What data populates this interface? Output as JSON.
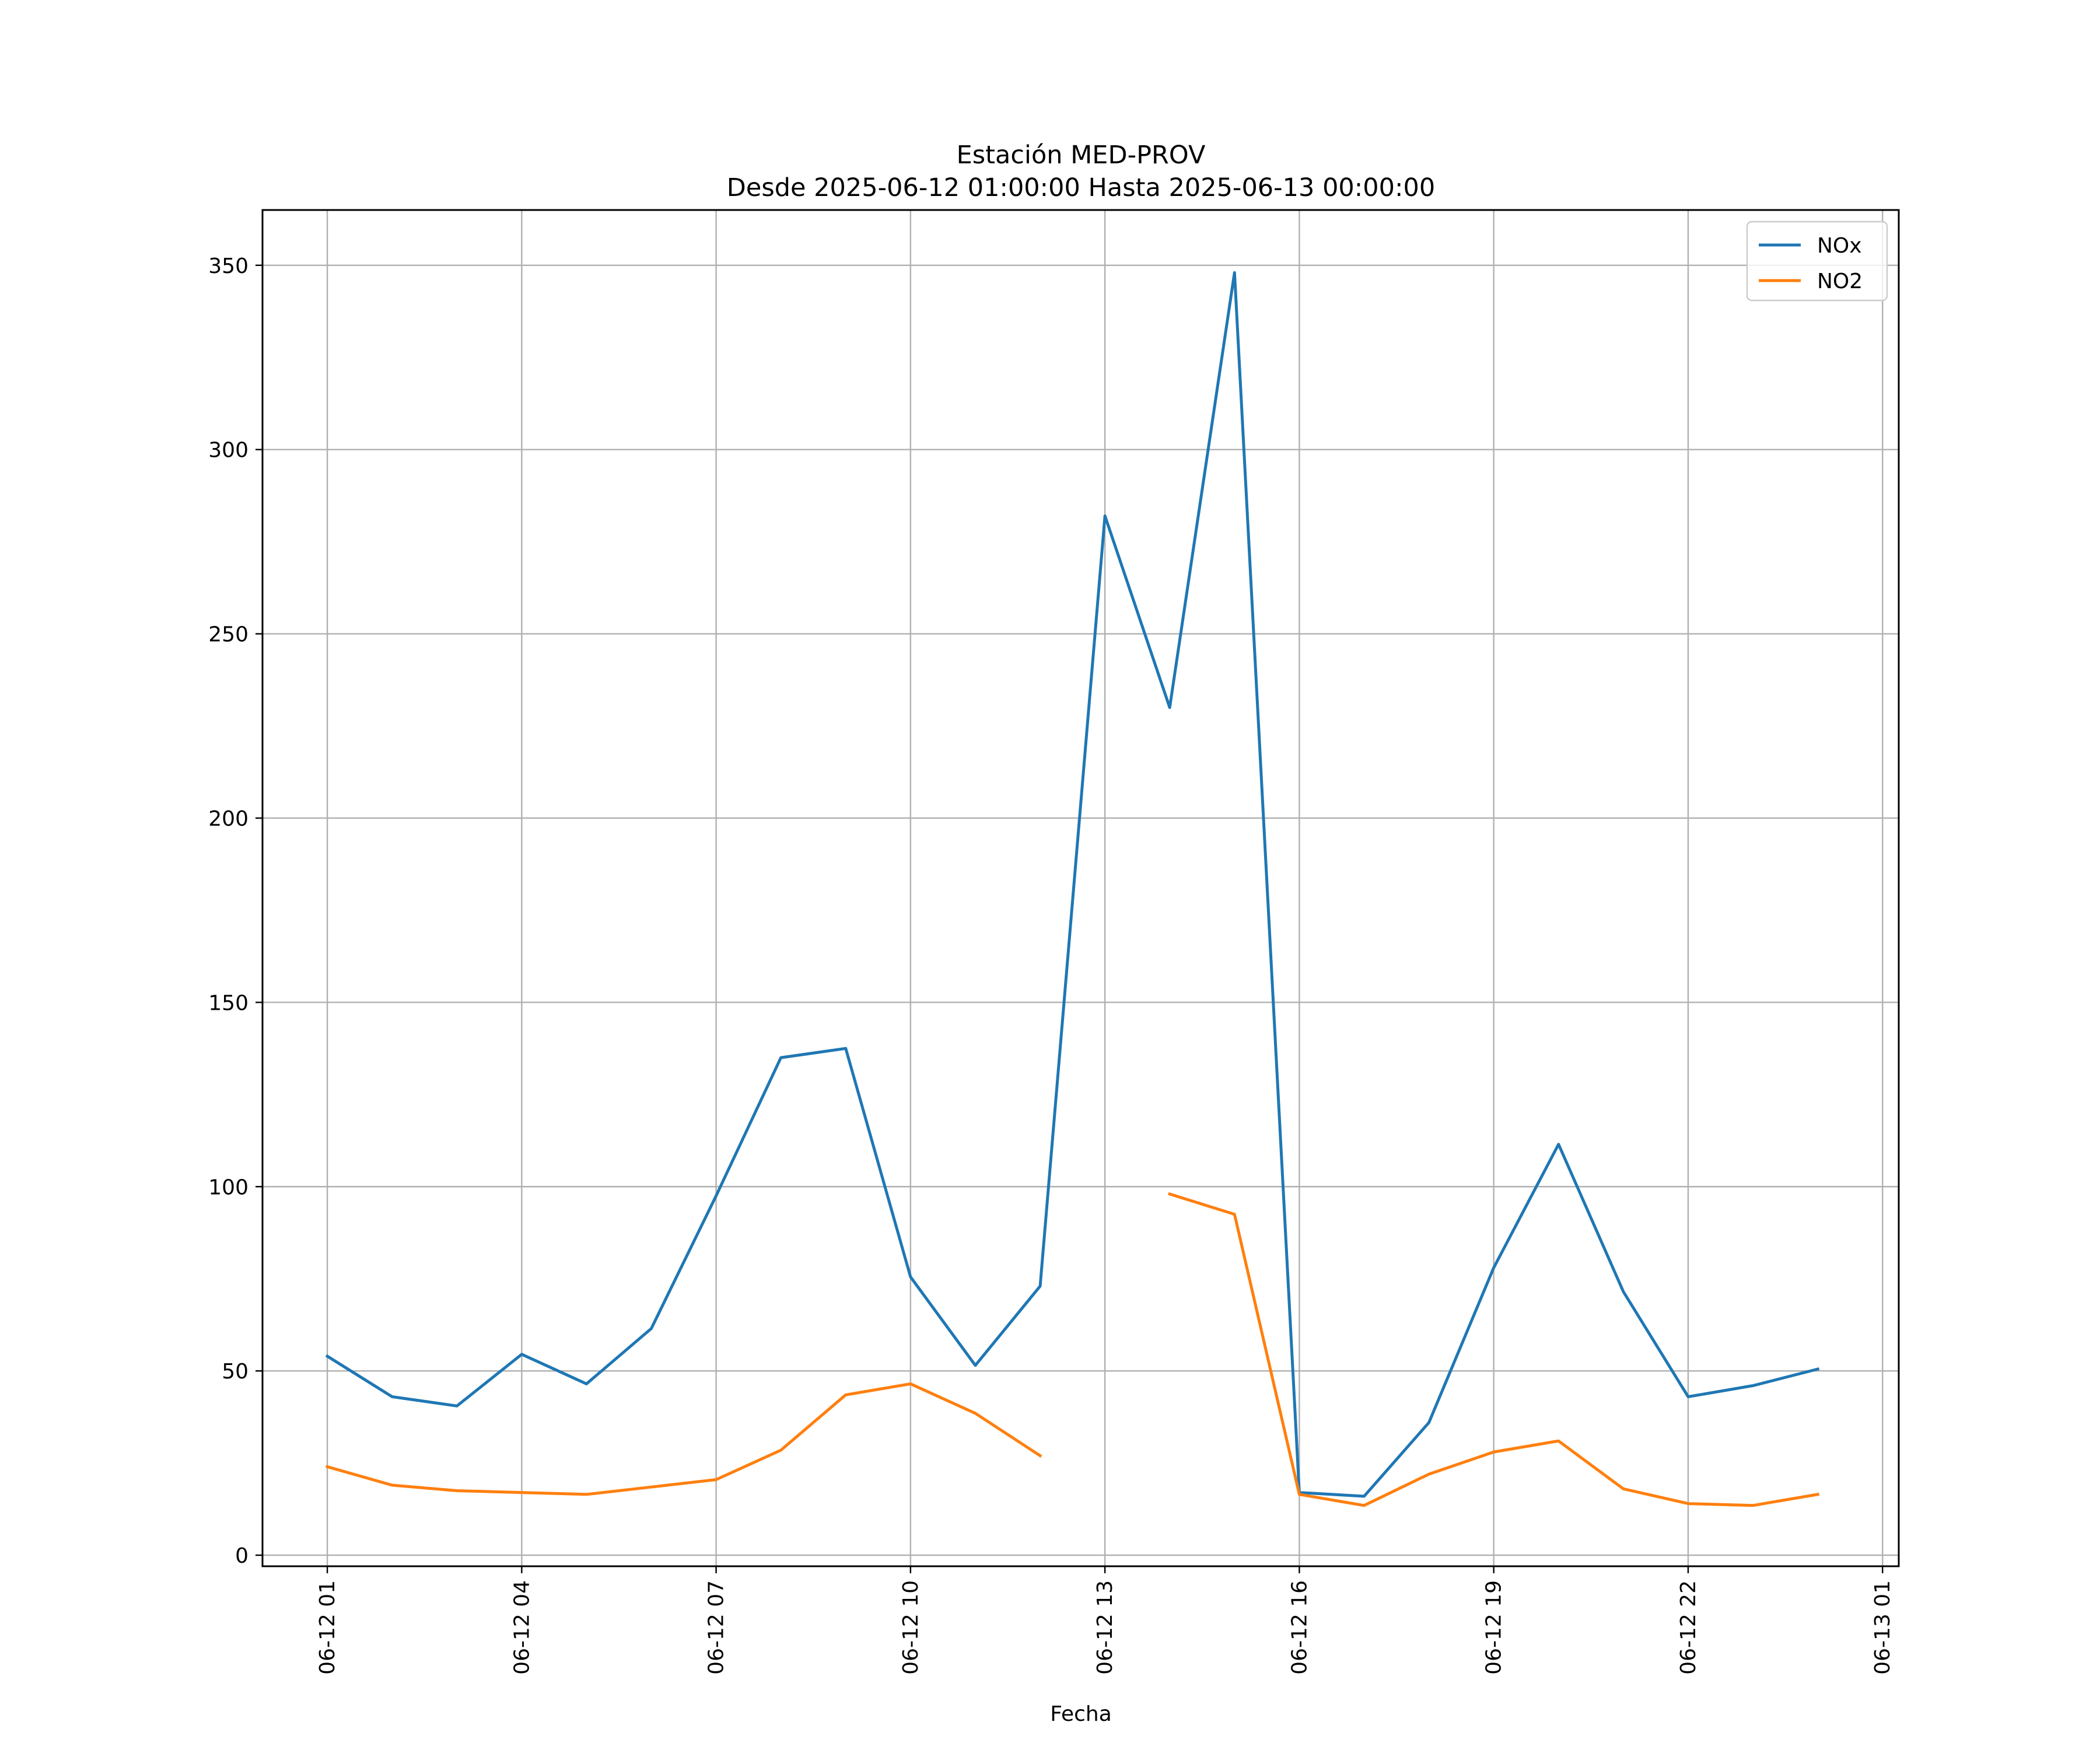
{
  "chart_data": {
    "type": "line",
    "title": "Estación MED-PROV",
    "subtitle": "Desde 2025-06-12 01:00:00 Hasta 2025-06-13 00:00:00",
    "xlabel": "Fecha",
    "ylabel": "",
    "x": [
      "2025-06-12 01:00",
      "2025-06-12 02:00",
      "2025-06-12 03:00",
      "2025-06-12 04:00",
      "2025-06-12 05:00",
      "2025-06-12 06:00",
      "2025-06-12 07:00",
      "2025-06-12 08:00",
      "2025-06-12 09:00",
      "2025-06-12 10:00",
      "2025-06-12 11:00",
      "2025-06-12 12:00",
      "2025-06-12 13:00",
      "2025-06-12 14:00",
      "2025-06-12 15:00",
      "2025-06-12 16:00",
      "2025-06-12 17:00",
      "2025-06-12 18:00",
      "2025-06-12 19:00",
      "2025-06-12 20:00",
      "2025-06-12 21:00",
      "2025-06-12 22:00",
      "2025-06-12 23:00",
      "2025-06-13 00:00"
    ],
    "xlim": [
      "2025-06-12 00:00",
      "2025-06-13 01:15"
    ],
    "xticks": [
      "06-12 01",
      "06-12 04",
      "06-12 07",
      "06-12 10",
      "06-12 13",
      "06-12 16",
      "06-12 19",
      "06-12 22",
      "06-13 01"
    ],
    "xtick_values": [
      "2025-06-12 01:00",
      "2025-06-12 04:00",
      "2025-06-12 07:00",
      "2025-06-12 10:00",
      "2025-06-12 13:00",
      "2025-06-12 16:00",
      "2025-06-12 19:00",
      "2025-06-12 22:00",
      "2025-06-13 01:00"
    ],
    "ylim": [
      -3,
      365
    ],
    "yticks": [
      0,
      50,
      100,
      150,
      200,
      250,
      300,
      350
    ],
    "grid": true,
    "legend": "top-right",
    "series": [
      {
        "name": "NOx",
        "color": "#1f77b4",
        "values": [
          54,
          43,
          40.5,
          54.5,
          46.5,
          61.5,
          97.5,
          135,
          137.5,
          75.5,
          51.5,
          73,
          282,
          230,
          348,
          17,
          16,
          36,
          78,
          111.5,
          71.5,
          43,
          46,
          50.5
        ]
      },
      {
        "name": "NO2",
        "color": "#ff7f0e",
        "values": [
          24,
          19,
          17.5,
          17,
          16.5,
          18.5,
          20.5,
          28.5,
          43.5,
          46.5,
          38.5,
          27,
          null,
          98,
          92.5,
          16.5,
          13.5,
          22,
          28,
          31,
          18,
          14,
          13.5,
          16.5
        ]
      }
    ]
  }
}
